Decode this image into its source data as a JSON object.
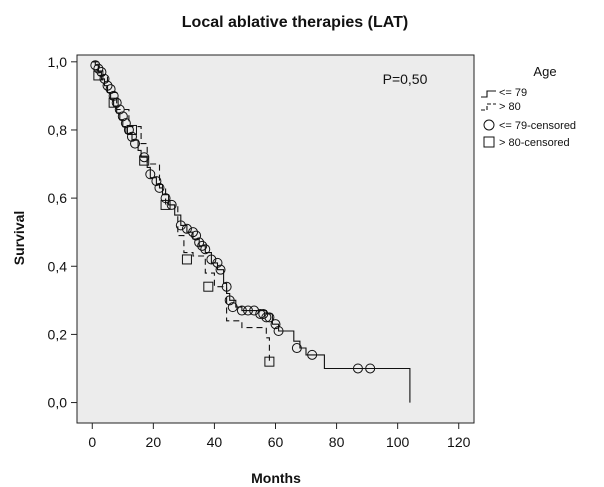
{
  "chart_data": {
    "type": "line",
    "subtype": "kaplan-meier",
    "title": "Local ablative therapies (LAT)",
    "xlabel": "Months",
    "ylabel": "Survival",
    "xlim": [
      -5,
      125
    ],
    "ylim": [
      -0.06,
      1.02
    ],
    "xticks": [
      0,
      20,
      40,
      60,
      80,
      100,
      120
    ],
    "yticks": [
      0.0,
      0.2,
      0.4,
      0.6,
      0.8,
      1.0
    ],
    "ytick_labels": [
      "0,0",
      "0,2",
      "0,4",
      "0,6",
      "0,8",
      "1,0"
    ],
    "annotation": "P=0,50",
    "legend": {
      "title": "Age",
      "position": "right",
      "entries": [
        "<= 79",
        "> 80",
        "<= 79-censored",
        "> 80-censored"
      ]
    },
    "plot_background": "#ececec",
    "series": [
      {
        "name": "<= 79",
        "style": "solid",
        "steps": [
          [
            0,
            1.0
          ],
          [
            1,
            0.99
          ],
          [
            2,
            0.97
          ],
          [
            3,
            0.95
          ],
          [
            4,
            0.93
          ],
          [
            5,
            0.91
          ],
          [
            6,
            0.89
          ],
          [
            7,
            0.87
          ],
          [
            8,
            0.85
          ],
          [
            9,
            0.83
          ],
          [
            10,
            0.81
          ],
          [
            11,
            0.79
          ],
          [
            13,
            0.77
          ],
          [
            15,
            0.74
          ],
          [
            16,
            0.72
          ],
          [
            18,
            0.69
          ],
          [
            19,
            0.66
          ],
          [
            21,
            0.64
          ],
          [
            23,
            0.61
          ],
          [
            25,
            0.58
          ],
          [
            27,
            0.55
          ],
          [
            29,
            0.52
          ],
          [
            31,
            0.5
          ],
          [
            33,
            0.48
          ],
          [
            35,
            0.46
          ],
          [
            37,
            0.44
          ],
          [
            39,
            0.41
          ],
          [
            41,
            0.39
          ],
          [
            43,
            0.35
          ],
          [
            44,
            0.32
          ],
          [
            45,
            0.3
          ],
          [
            47,
            0.28
          ],
          [
            49,
            0.27
          ],
          [
            57,
            0.26
          ],
          [
            59,
            0.23
          ],
          [
            61,
            0.21
          ],
          [
            66,
            0.18
          ],
          [
            68,
            0.16
          ],
          [
            70,
            0.14
          ],
          [
            76,
            0.1
          ],
          [
            104,
            0.0
          ]
        ],
        "end": 104,
        "censored": [
          [
            1,
            0.99
          ],
          [
            2,
            0.98
          ],
          [
            3,
            0.97
          ],
          [
            4,
            0.95
          ],
          [
            5,
            0.93
          ],
          [
            6,
            0.92
          ],
          [
            7,
            0.9
          ],
          [
            8,
            0.88
          ],
          [
            9,
            0.86
          ],
          [
            10,
            0.84
          ],
          [
            11,
            0.82
          ],
          [
            12,
            0.8
          ],
          [
            13,
            0.78
          ],
          [
            14,
            0.76
          ],
          [
            17,
            0.72
          ],
          [
            19,
            0.67
          ],
          [
            21,
            0.65
          ],
          [
            22,
            0.63
          ],
          [
            24,
            0.6
          ],
          [
            26,
            0.58
          ],
          [
            29,
            0.52
          ],
          [
            31,
            0.51
          ],
          [
            33,
            0.5
          ],
          [
            34,
            0.49
          ],
          [
            35,
            0.47
          ],
          [
            36,
            0.46
          ],
          [
            37,
            0.45
          ],
          [
            39,
            0.42
          ],
          [
            41,
            0.41
          ],
          [
            42,
            0.39
          ],
          [
            44,
            0.34
          ],
          [
            45,
            0.3
          ],
          [
            46,
            0.28
          ],
          [
            49,
            0.27
          ],
          [
            51,
            0.27
          ],
          [
            53,
            0.27
          ],
          [
            55,
            0.26
          ],
          [
            56,
            0.26
          ],
          [
            57,
            0.25
          ],
          [
            58,
            0.25
          ],
          [
            60,
            0.23
          ],
          [
            61,
            0.21
          ],
          [
            67,
            0.16
          ],
          [
            72,
            0.14
          ],
          [
            87,
            0.1
          ],
          [
            91,
            0.1
          ]
        ]
      },
      {
        "name": "> 80",
        "style": "dashed",
        "steps": [
          [
            0,
            1.0
          ],
          [
            2,
            0.96
          ],
          [
            5,
            0.91
          ],
          [
            8,
            0.86
          ],
          [
            12,
            0.81
          ],
          [
            16,
            0.76
          ],
          [
            18,
            0.7
          ],
          [
            22,
            0.63
          ],
          [
            24,
            0.58
          ],
          [
            28,
            0.49
          ],
          [
            30,
            0.44
          ],
          [
            33,
            0.43
          ],
          [
            37,
            0.38
          ],
          [
            40,
            0.34
          ],
          [
            44,
            0.24
          ],
          [
            49,
            0.22
          ],
          [
            57,
            0.19
          ],
          [
            58,
            0.12
          ]
        ],
        "end": 58,
        "censored": [
          [
            2,
            0.96
          ],
          [
            7,
            0.88
          ],
          [
            13,
            0.8
          ],
          [
            17,
            0.71
          ],
          [
            24,
            0.58
          ],
          [
            31,
            0.42
          ],
          [
            38,
            0.34
          ],
          [
            58,
            0.12
          ]
        ]
      }
    ]
  }
}
